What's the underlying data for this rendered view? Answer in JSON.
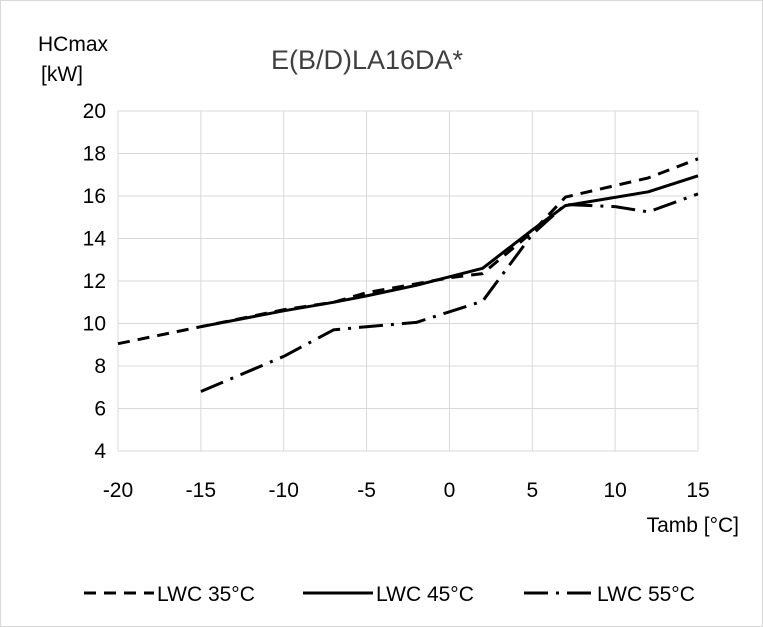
{
  "chart_data": {
    "type": "line",
    "title": "E(B/D)LA16DA*",
    "ylabel_line1": "HCmax",
    "ylabel_line2": "[kW]",
    "xlabel": "Tamb [°C]",
    "xlim": [
      -20,
      15
    ],
    "ylim": [
      4,
      20
    ],
    "x_ticks": [
      -20,
      -15,
      -10,
      -5,
      0,
      5,
      10,
      15
    ],
    "y_ticks": [
      4,
      6,
      8,
      10,
      12,
      14,
      16,
      18,
      20
    ],
    "grid": true,
    "legend_position": "bottom",
    "series": [
      {
        "name": "LWC 35°C",
        "style": "dashed",
        "points": [
          [
            -20,
            9.05
          ],
          [
            -15,
            9.85
          ],
          [
            -10,
            10.65
          ],
          [
            -7,
            11.0
          ],
          [
            -5,
            11.45
          ],
          [
            0,
            12.15
          ],
          [
            2,
            12.35
          ],
          [
            5,
            14.3
          ],
          [
            7,
            15.95
          ],
          [
            12,
            16.85
          ],
          [
            15,
            17.75
          ]
        ]
      },
      {
        "name": "LWC 45°C",
        "style": "solid",
        "points": [
          [
            -15,
            9.85
          ],
          [
            -10,
            10.6
          ],
          [
            -7,
            11.0
          ],
          [
            -5,
            11.3
          ],
          [
            -2,
            11.8
          ],
          [
            0,
            12.2
          ],
          [
            2,
            12.6
          ],
          [
            5,
            14.4
          ],
          [
            7,
            15.55
          ],
          [
            12,
            16.2
          ],
          [
            15,
            16.95
          ]
        ]
      },
      {
        "name": "LWC 55°C",
        "style": "dashdot",
        "points": [
          [
            -15,
            6.8
          ],
          [
            -10,
            8.45
          ],
          [
            -7,
            9.7
          ],
          [
            -5,
            9.85
          ],
          [
            -2,
            10.05
          ],
          [
            0,
            10.55
          ],
          [
            2,
            11.05
          ],
          [
            5,
            14.2
          ],
          [
            7,
            15.6
          ],
          [
            10,
            15.5
          ],
          [
            12,
            15.25
          ],
          [
            15,
            16.1
          ]
        ]
      }
    ]
  }
}
